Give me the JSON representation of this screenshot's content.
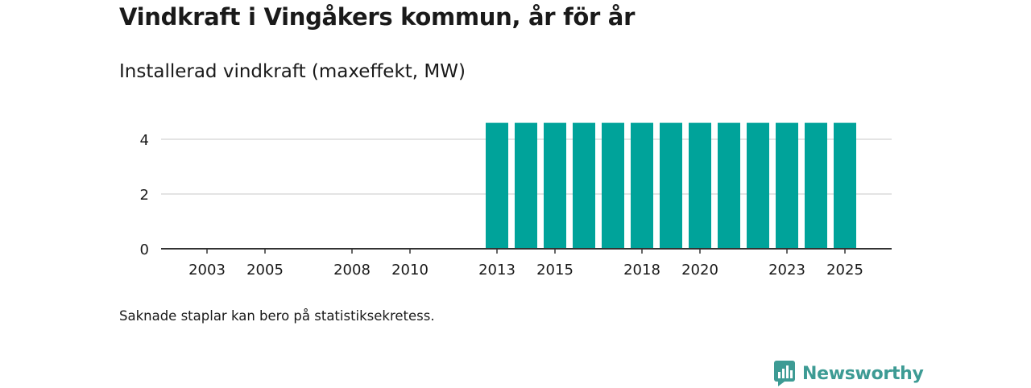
{
  "header": {
    "title": "Vindkraft i Vingåkers kommun, år för år",
    "subtitle": "Installerad vindkraft (maxeffekt, MW)"
  },
  "footer": {
    "note": "Saknade staplar kan bero på statistiksekretess.",
    "brand": "Newsworthy"
  },
  "colors": {
    "bar": "#00a39a",
    "grid": "#dcdcdc",
    "axis": "#333333",
    "brand": "#3d9b94"
  },
  "chart_data": {
    "type": "bar",
    "title": "Installerad vindkraft (maxeffekt, MW)",
    "xlabel": "",
    "ylabel": "",
    "ylim": [
      0,
      5
    ],
    "grid": true,
    "categories": [
      "2003",
      "2004",
      "2005",
      "2006",
      "2007",
      "2008",
      "2009",
      "2010",
      "2011",
      "2012",
      "2013",
      "2014",
      "2015",
      "2016",
      "2017",
      "2018",
      "2019",
      "2020",
      "2021",
      "2022",
      "2023",
      "2024",
      "2025"
    ],
    "values": [
      0,
      0,
      0,
      0,
      0,
      0,
      0,
      0,
      0,
      0,
      4.6,
      4.6,
      4.6,
      4.6,
      4.6,
      4.6,
      4.6,
      4.6,
      4.6,
      4.6,
      4.6,
      4.6,
      4.6
    ],
    "x_tick_labels": [
      "2003",
      "2005",
      "2008",
      "2010",
      "2013",
      "2015",
      "2018",
      "2020",
      "2023",
      "2025"
    ],
    "y_ticks": [
      0,
      2,
      4
    ],
    "y_tick_labels": [
      "0",
      "2",
      "4"
    ]
  }
}
